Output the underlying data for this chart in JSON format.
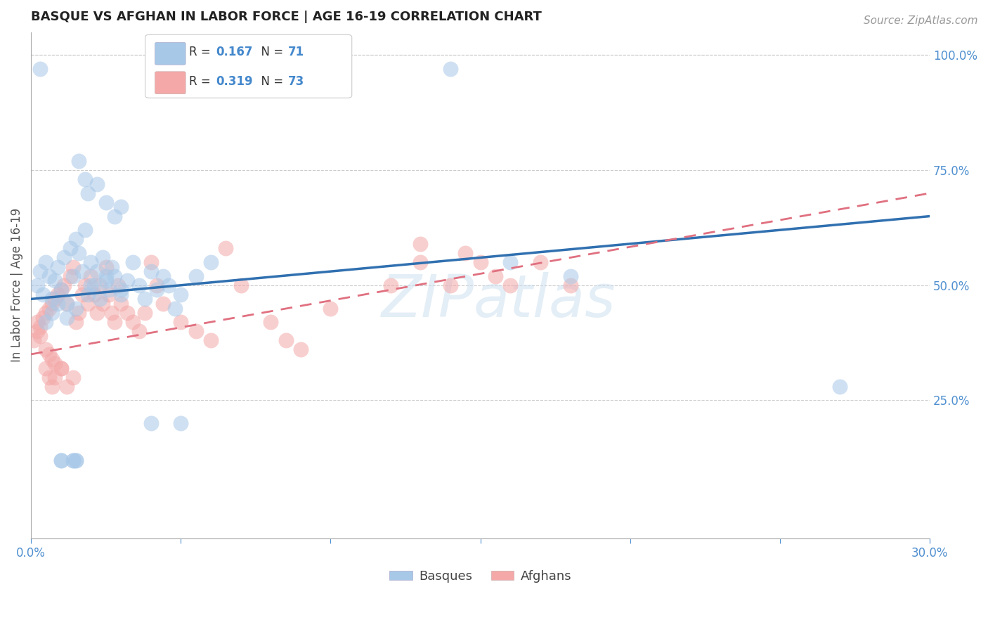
{
  "title": "BASQUE VS AFGHAN IN LABOR FORCE | AGE 16-19 CORRELATION CHART",
  "source": "Source: ZipAtlas.com",
  "ylabel": "In Labor Force | Age 16-19",
  "xlim": [
    0.0,
    0.3
  ],
  "ylim": [
    -0.05,
    1.05
  ],
  "xticks": [
    0.0,
    0.05,
    0.1,
    0.15,
    0.2,
    0.25,
    0.3
  ],
  "xticklabels": [
    "0.0%",
    "",
    "",
    "",
    "",
    "",
    "30.0%"
  ],
  "yticks_right": [
    0.25,
    0.5,
    0.75,
    1.0
  ],
  "yticklabels_right": [
    "25.0%",
    "50.0%",
    "75.0%",
    "100.0%"
  ],
  "r_blue": "0.167",
  "n_blue": "71",
  "r_pink": "0.319",
  "n_pink": "73",
  "watermark": "ZIPatlas",
  "blue_dot_color": "#a8c8e8",
  "pink_dot_color": "#f4a8a8",
  "blue_line_color": "#3070b0",
  "pink_line_color": "#e07080",
  "axis_color": "#5090d0",
  "grid_color": "#cccccc",
  "background_color": "#ffffff",
  "blue_line_y0": 0.47,
  "blue_line_y1": 0.65,
  "pink_line_y0": 0.35,
  "pink_line_y1": 0.7,
  "legend_box_color": "#f0f0f0",
  "legend_text_color": "#333333",
  "legend_r_color": "#4488cc",
  "legend_n_color": "#4488cc"
}
